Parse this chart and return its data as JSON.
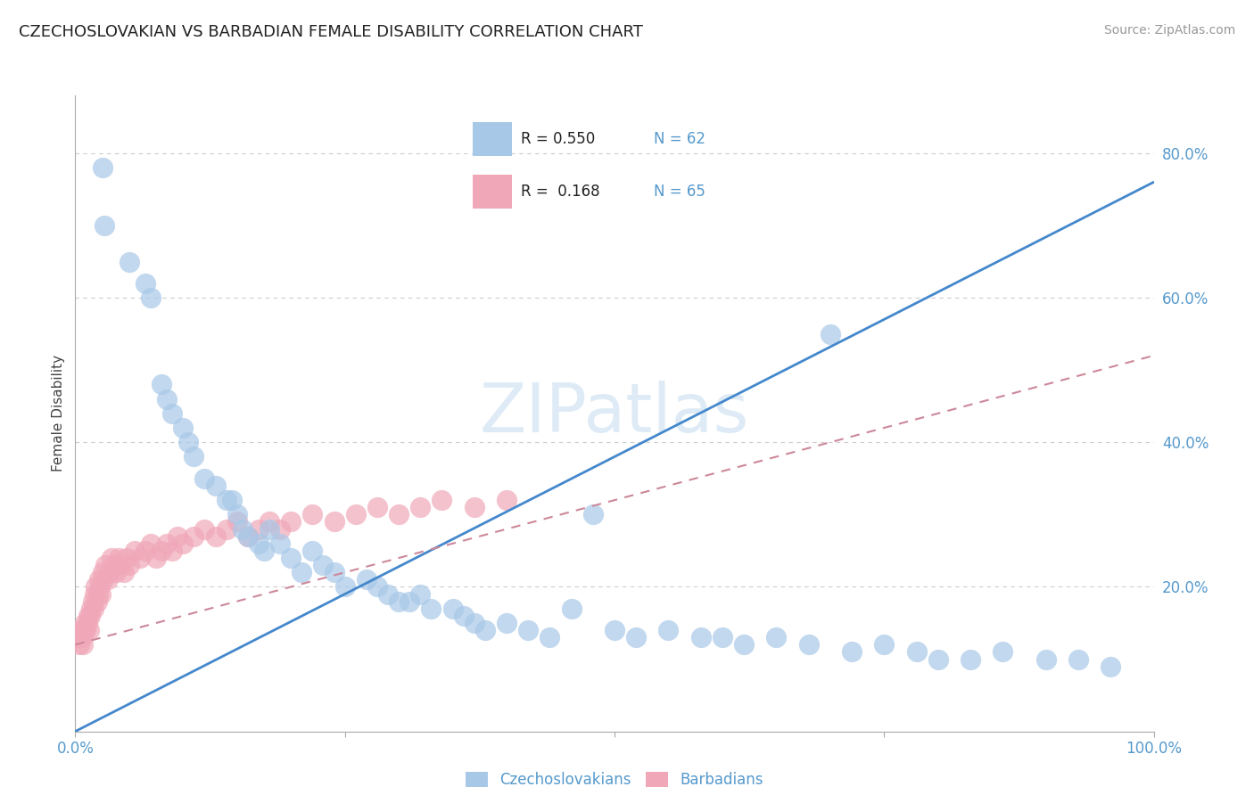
{
  "title": "CZECHOSLOVAKIAN VS BARBADIAN FEMALE DISABILITY CORRELATION CHART",
  "source": "Source: ZipAtlas.com",
  "ylabel": "Female Disability",
  "xlim": [
    0.0,
    1.0
  ],
  "ylim": [
    0.0,
    0.88
  ],
  "grid_color": "#cccccc",
  "watermark": "ZIPatlas",
  "blue_color": "#a8c8e8",
  "pink_color": "#f0a8b8",
  "blue_line_color": "#4488cc",
  "pink_line_color": "#cc8899",
  "blue_scatter_x": [
    0.025,
    0.027,
    0.05,
    0.065,
    0.07,
    0.08,
    0.085,
    0.09,
    0.1,
    0.105,
    0.11,
    0.12,
    0.13,
    0.14,
    0.145,
    0.15,
    0.155,
    0.16,
    0.17,
    0.175,
    0.18,
    0.19,
    0.2,
    0.21,
    0.22,
    0.23,
    0.24,
    0.25,
    0.27,
    0.28,
    0.29,
    0.3,
    0.31,
    0.32,
    0.33,
    0.35,
    0.36,
    0.37,
    0.38,
    0.4,
    0.42,
    0.44,
    0.46,
    0.48,
    0.5,
    0.52,
    0.55,
    0.58,
    0.6,
    0.62,
    0.65,
    0.68,
    0.7,
    0.72,
    0.75,
    0.78,
    0.8,
    0.83,
    0.86,
    0.9,
    0.93,
    0.96
  ],
  "blue_scatter_y": [
    0.78,
    0.7,
    0.65,
    0.62,
    0.6,
    0.48,
    0.46,
    0.44,
    0.42,
    0.4,
    0.38,
    0.35,
    0.34,
    0.32,
    0.32,
    0.3,
    0.28,
    0.27,
    0.26,
    0.25,
    0.28,
    0.26,
    0.24,
    0.22,
    0.25,
    0.23,
    0.22,
    0.2,
    0.21,
    0.2,
    0.19,
    0.18,
    0.18,
    0.19,
    0.17,
    0.17,
    0.16,
    0.15,
    0.14,
    0.15,
    0.14,
    0.13,
    0.17,
    0.3,
    0.14,
    0.13,
    0.14,
    0.13,
    0.13,
    0.12,
    0.13,
    0.12,
    0.55,
    0.11,
    0.12,
    0.11,
    0.1,
    0.1,
    0.11,
    0.1,
    0.1,
    0.09
  ],
  "pink_scatter_x": [
    0.002,
    0.003,
    0.004,
    0.005,
    0.006,
    0.007,
    0.008,
    0.009,
    0.01,
    0.011,
    0.012,
    0.013,
    0.014,
    0.015,
    0.016,
    0.017,
    0.018,
    0.019,
    0.02,
    0.021,
    0.022,
    0.023,
    0.024,
    0.025,
    0.026,
    0.028,
    0.03,
    0.032,
    0.034,
    0.036,
    0.038,
    0.04,
    0.042,
    0.045,
    0.048,
    0.05,
    0.055,
    0.06,
    0.065,
    0.07,
    0.075,
    0.08,
    0.085,
    0.09,
    0.095,
    0.1,
    0.11,
    0.12,
    0.13,
    0.14,
    0.15,
    0.16,
    0.17,
    0.18,
    0.19,
    0.2,
    0.22,
    0.24,
    0.26,
    0.28,
    0.3,
    0.32,
    0.34,
    0.37,
    0.4
  ],
  "pink_scatter_y": [
    0.13,
    0.13,
    0.12,
    0.14,
    0.13,
    0.12,
    0.14,
    0.15,
    0.14,
    0.15,
    0.16,
    0.14,
    0.16,
    0.17,
    0.18,
    0.17,
    0.19,
    0.2,
    0.18,
    0.19,
    0.21,
    0.2,
    0.19,
    0.22,
    0.21,
    0.23,
    0.21,
    0.22,
    0.24,
    0.23,
    0.22,
    0.24,
    0.23,
    0.22,
    0.24,
    0.23,
    0.25,
    0.24,
    0.25,
    0.26,
    0.24,
    0.25,
    0.26,
    0.25,
    0.27,
    0.26,
    0.27,
    0.28,
    0.27,
    0.28,
    0.29,
    0.27,
    0.28,
    0.29,
    0.28,
    0.29,
    0.3,
    0.29,
    0.3,
    0.31,
    0.3,
    0.31,
    0.32,
    0.31,
    0.32
  ],
  "blue_line_x0": 0.0,
  "blue_line_y0": 0.0,
  "blue_line_x1": 1.0,
  "blue_line_y1": 0.76,
  "pink_line_x0": 0.0,
  "pink_line_y0": 0.12,
  "pink_line_x1": 1.0,
  "pink_line_y1": 0.52
}
